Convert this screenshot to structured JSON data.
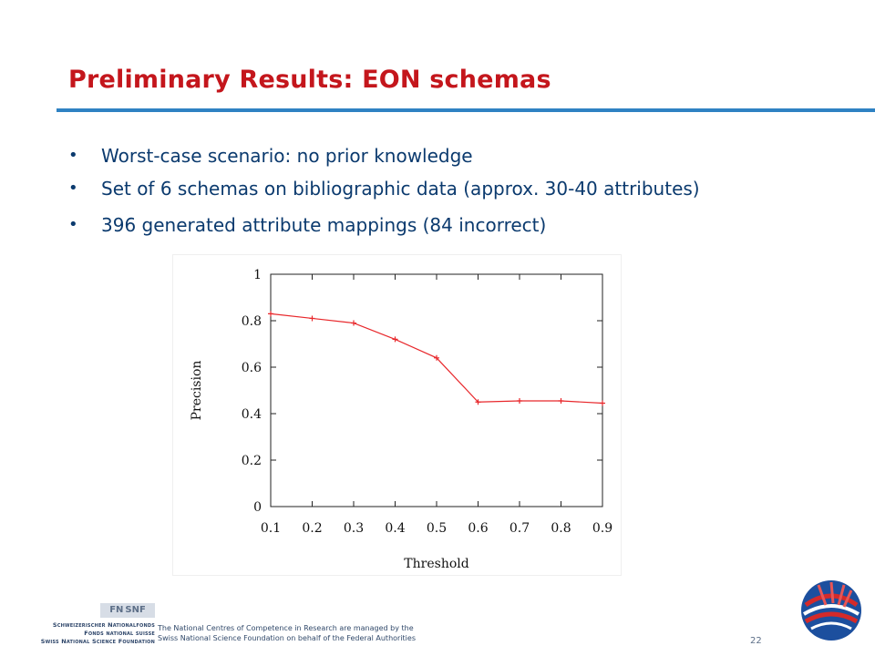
{
  "slide": {
    "title": "Preliminary Results: EON schemas",
    "bullets": [
      "Worst-case scenario: no prior knowledge",
      "Set of 6 schemas on bibliographic data (approx. 30-40 attributes)",
      "396 generated attribute mappings (84 incorrect)"
    ],
    "bullet_glyph": "•",
    "colors": {
      "title": "#c4161c",
      "rule": "#2f82c3",
      "text": "#0b3a6e",
      "series": "#e8272b"
    }
  },
  "chart_data": {
    "type": "line",
    "x": [
      0.1,
      0.2,
      0.3,
      0.4,
      0.5,
      0.6,
      0.7,
      0.8,
      0.9
    ],
    "series": [
      {
        "values": [
          0.83,
          0.81,
          0.79,
          0.72,
          0.64,
          0.45,
          0.455,
          0.455,
          0.445
        ]
      }
    ],
    "xlabel": "Threshold",
    "ylabel": "Precision",
    "xlim": [
      0.1,
      0.9
    ],
    "ylim": [
      0,
      1
    ],
    "xticks": [
      "0.1",
      "0.2",
      "0.3",
      "0.4",
      "0.5",
      "0.6",
      "0.7",
      "0.8",
      "0.9"
    ],
    "yticks": [
      "0",
      "0.2",
      "0.4",
      "0.6",
      "0.8",
      "1"
    ],
    "grid": false,
    "legend": "none",
    "markers": "plus"
  },
  "footer": {
    "fn_mark": "FN SNF",
    "org_lines": [
      "Schweizerischer Nationalfonds",
      "Fonds national suisse",
      "Swiss National Science Foundation"
    ],
    "note_lines": [
      "The National Centres of Competence in Research are managed by the",
      "Swiss National Science Foundation on behalf of the Federal Authorities"
    ],
    "page_number": "22"
  }
}
